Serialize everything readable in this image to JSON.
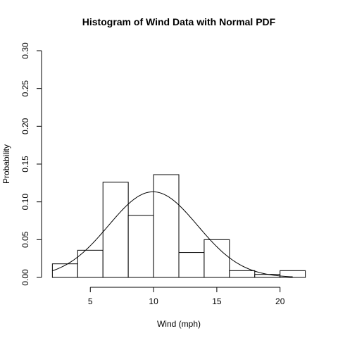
{
  "chart_data": {
    "type": "histogram",
    "title": "Histogram of Wind Data with Normal PDF",
    "xlabel": "Wind (mph)",
    "ylabel": "Probability",
    "xlim": [
      1.2,
      22.8
    ],
    "ylim": [
      0,
      0.3
    ],
    "x_ticks": [
      5,
      10,
      15,
      20
    ],
    "y_ticks": [
      0.0,
      0.05,
      0.1,
      0.15,
      0.2,
      0.25,
      0.3
    ],
    "y_tick_labels": [
      "0.00",
      "0.05",
      "0.10",
      "0.15",
      "0.20",
      "0.25",
      "0.30"
    ],
    "bins": [
      {
        "from": 2,
        "to": 4,
        "value": 0.018
      },
      {
        "from": 4,
        "to": 6,
        "value": 0.036
      },
      {
        "from": 6,
        "to": 8,
        "value": 0.126
      },
      {
        "from": 8,
        "to": 10,
        "value": 0.082
      },
      {
        "from": 10,
        "to": 12,
        "value": 0.136
      },
      {
        "from": 12,
        "to": 14,
        "value": 0.033
      },
      {
        "from": 14,
        "to": 16,
        "value": 0.05
      },
      {
        "from": 16,
        "to": 18,
        "value": 0.009
      },
      {
        "from": 18,
        "to": 20,
        "value": 0.004
      },
      {
        "from": 20,
        "to": 22,
        "value": 0.009
      }
    ],
    "normal_pdf": {
      "mean": 9.96,
      "sd": 3.52,
      "x_range": [
        2,
        21
      ]
    },
    "grid": false,
    "legend": "none"
  }
}
